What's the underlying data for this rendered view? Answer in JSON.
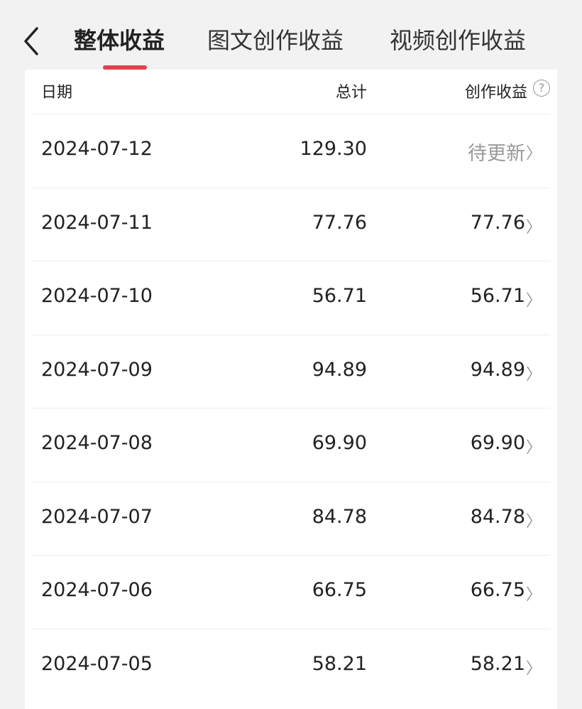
{
  "tabs": [
    {
      "label": "整体收益",
      "active": true
    },
    {
      "label": "图文创作收益"
    },
    {
      "label": "视频创作收益"
    }
  ],
  "accent": "#e3404f",
  "table": {
    "headers": {
      "date": "日期",
      "total": "总计",
      "earnings": "创作收益"
    },
    "help_icon": "?",
    "rows": [
      {
        "date": "2024-07-12",
        "total": "129.30",
        "earnings": "待更新"
      },
      {
        "date": "2024-07-11",
        "total": "77.76",
        "earnings": "77.76"
      },
      {
        "date": "2024-07-10",
        "total": "56.71",
        "earnings": "56.71"
      },
      {
        "date": "2024-07-09",
        "total": "94.89",
        "earnings": "94.89"
      },
      {
        "date": "2024-07-08",
        "total": "69.90",
        "earnings": "69.90"
      },
      {
        "date": "2024-07-07",
        "total": "84.78",
        "earnings": "84.78"
      },
      {
        "date": "2024-07-06",
        "total": "66.75",
        "earnings": "66.75"
      },
      {
        "date": "2024-07-05",
        "total": "58.21",
        "earnings": "58.21"
      }
    ]
  }
}
